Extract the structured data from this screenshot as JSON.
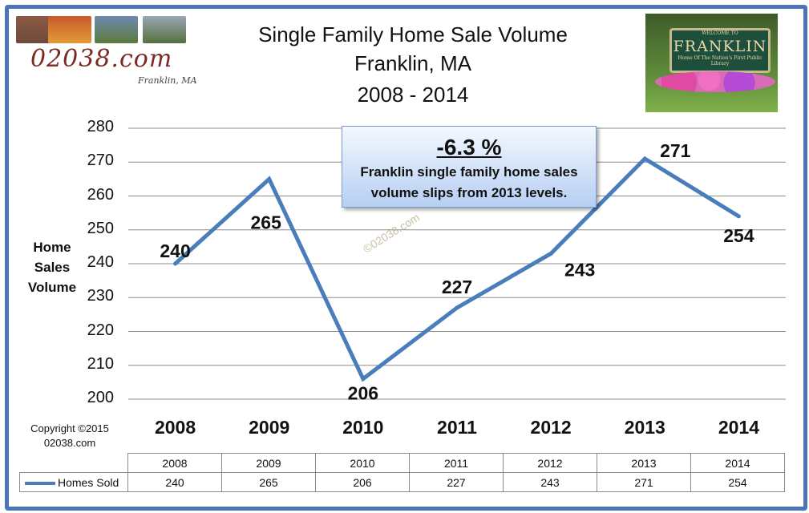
{
  "header": {
    "logo_text": "02038.com",
    "logo_sub": "Franklin, MA",
    "photo_sign_top": "WELCOME TO",
    "photo_sign_main": "FRANKLIN",
    "photo_sign_bottom": "Home Of The Nation's First Public Library"
  },
  "colors": {
    "frame": "#4a76b8",
    "line": "#4a7ebb",
    "callout_bottom": "#b6cff3"
  },
  "chart_data": {
    "type": "line",
    "title": [
      "Single Family Home Sale Volume",
      "Franklin, MA",
      "2008 - 2014"
    ],
    "ylabel": [
      "Home",
      "Sales",
      "Volume"
    ],
    "xlabel": "",
    "categories": [
      "2008",
      "2009",
      "2010",
      "2011",
      "2012",
      "2013",
      "2014"
    ],
    "series": [
      {
        "name": "Homes Sold",
        "values": [
          240,
          265,
          206,
          227,
          243,
          271,
          254
        ]
      }
    ],
    "ylim": [
      200,
      280
    ],
    "yticks": [
      "200",
      "210",
      "220",
      "230",
      "240",
      "250",
      "260",
      "270",
      "280"
    ],
    "grid": true,
    "data_labels": [
      "240",
      "265",
      "206",
      "227",
      "243",
      "271",
      "254"
    ],
    "annotation": {
      "percent": "-6.3 %",
      "line1": "Franklin single family home sales",
      "line2": "volume slips from 2013 levels."
    },
    "watermark": "©02038.com",
    "copyright": [
      "Copyright ©2015",
      "02038.com"
    ],
    "legend": "bottom data table"
  }
}
